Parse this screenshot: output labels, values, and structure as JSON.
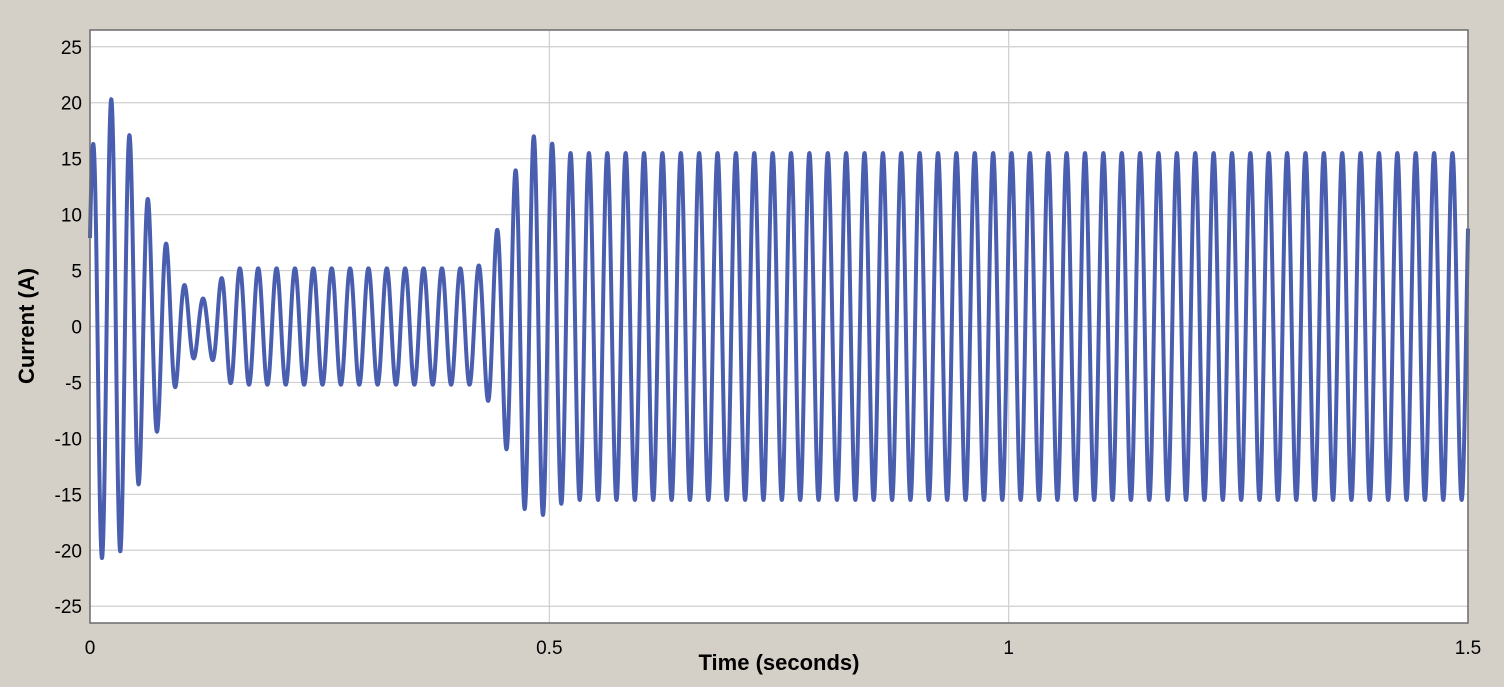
{
  "chart_data": {
    "type": "line",
    "title": "",
    "xlabel": "Time (seconds)",
    "ylabel": "Current (A)",
    "xlim": [
      0,
      1.5
    ],
    "ylim": [
      -26.5,
      26.5
    ],
    "x_ticks": [
      0,
      0.5,
      1,
      1.5
    ],
    "x_tick_labels": [
      "0",
      "0.5",
      "1",
      "1.5"
    ],
    "y_ticks": [
      25,
      20,
      15,
      10,
      5,
      0,
      -5,
      -10,
      -15,
      -20,
      -25
    ],
    "y_tick_labels": [
      "25",
      "20",
      "15",
      "10",
      "5",
      "0",
      "-5",
      "-10",
      "-15",
      "-20",
      "-25"
    ],
    "grid": true,
    "legend": "none",
    "series": [
      {
        "frequency_hz": 50,
        "color": "#4a5eb0",
        "envelope": {
          "time_s": [
            0,
            0.01,
            0.02,
            0.03,
            0.04,
            0.05,
            0.06,
            0.07,
            0.08,
            0.09,
            0.1,
            0.11,
            0.12,
            0.13,
            0.14,
            0.15,
            0.16,
            0.42,
            0.43,
            0.44,
            0.45,
            0.46,
            0.47,
            0.48,
            0.49,
            0.5,
            0.51,
            0.52,
            0.55,
            1.5
          ],
          "peak_A": [
            14,
            21,
            20,
            21,
            18,
            15,
            12,
            10,
            8,
            6,
            4,
            3,
            2.5,
            2.5,
            4,
            5,
            5.2,
            5.2,
            6,
            8,
            10,
            13,
            16,
            17,
            17,
            16.5,
            16,
            15.5,
            15.5,
            15.5
          ]
        }
      }
    ]
  }
}
